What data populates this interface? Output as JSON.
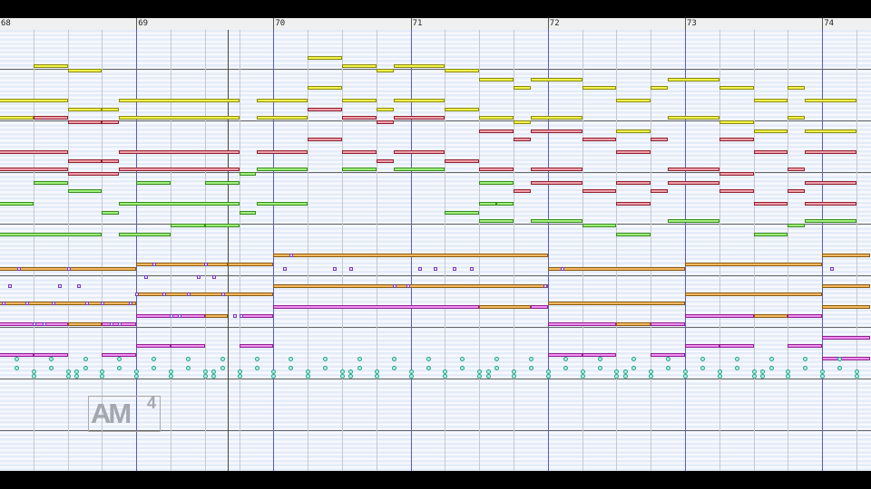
{
  "ruler": {
    "measures": [
      "68",
      "69",
      "70",
      "71",
      "72",
      "73",
      "74"
    ],
    "start_measure": 68,
    "beats_per_measure": 4
  },
  "view": {
    "top_pitch": 108,
    "playhead_beat": 6.67
  },
  "logo": {
    "text": "AM",
    "sup": "4"
  },
  "colors": {
    "yellow": "#f2f24a",
    "red": "#f0a0aa",
    "green": "#9ef07a",
    "orange": "#f4b860",
    "magenta": "#f090f0",
    "measure_line": "#5a5ac8",
    "beat_line": "#c4c8d0"
  },
  "tracks": [
    {
      "color": "yellow",
      "border": "#8a8a10",
      "notes": [
        [
          1,
          2,
          100
        ],
        [
          2,
          3,
          99
        ],
        [
          9,
          10,
          102
        ],
        [
          10,
          11,
          100
        ],
        [
          11,
          11.5,
          99
        ],
        [
          11.5,
          13,
          100
        ],
        [
          13,
          14,
          99
        ],
        [
          14,
          15,
          97
        ],
        [
          15,
          15.5,
          95
        ],
        [
          15.5,
          17,
          97
        ],
        [
          17,
          18,
          95
        ],
        [
          19.5,
          21,
          97
        ],
        [
          19,
          19.5,
          95
        ],
        [
          21,
          22,
          95
        ],
        [
          23,
          23.5,
          95
        ],
        [
          9,
          10,
          95
        ],
        [
          0,
          2,
          92
        ],
        [
          3.5,
          7,
          92
        ],
        [
          7.5,
          9,
          92
        ],
        [
          10,
          11,
          92
        ],
        [
          11.5,
          13,
          92
        ],
        [
          18,
          19,
          92
        ],
        [
          22,
          23,
          92
        ],
        [
          23.5,
          25,
          92
        ],
        [
          2,
          3,
          90
        ],
        [
          3,
          3.5,
          90
        ],
        [
          11,
          11.5,
          90
        ],
        [
          13,
          14,
          90
        ],
        [
          0,
          1,
          88
        ],
        [
          3.5,
          7,
          88
        ],
        [
          7.5,
          9,
          88
        ],
        [
          14,
          15,
          88
        ],
        [
          15.5,
          17,
          88
        ],
        [
          19.5,
          21,
          88
        ],
        [
          23,
          23.5,
          88
        ],
        [
          15,
          15.5,
          87
        ],
        [
          21,
          22,
          87
        ],
        [
          18,
          19,
          85
        ],
        [
          22,
          23,
          85
        ],
        [
          23.5,
          25,
          85
        ]
      ]
    },
    {
      "color": "red",
      "border": "#902030",
      "notes": [
        [
          1,
          2,
          88
        ],
        [
          2,
          3,
          87
        ],
        [
          3,
          3.5,
          87
        ],
        [
          9,
          10,
          90
        ],
        [
          10,
          11,
          88
        ],
        [
          11.5,
          13,
          88
        ],
        [
          11,
          11.5,
          87
        ],
        [
          14,
          15,
          85
        ],
        [
          15,
          15.5,
          83
        ],
        [
          15.5,
          17,
          85
        ],
        [
          17,
          18,
          83
        ],
        [
          19,
          19.5,
          83
        ],
        [
          21,
          22,
          83
        ],
        [
          9,
          10,
          83
        ],
        [
          0,
          2,
          80
        ],
        [
          3.5,
          7,
          80
        ],
        [
          7.5,
          9,
          80
        ],
        [
          10,
          11,
          80
        ],
        [
          11.5,
          13,
          80
        ],
        [
          18,
          19,
          80
        ],
        [
          22,
          23,
          80
        ],
        [
          23.5,
          25,
          80
        ],
        [
          2,
          3,
          78
        ],
        [
          3,
          3.5,
          78
        ],
        [
          11,
          11.5,
          78
        ],
        [
          13,
          14,
          78
        ],
        [
          0,
          2,
          76
        ],
        [
          3.5,
          7,
          76
        ],
        [
          14,
          15,
          76
        ],
        [
          15.5,
          17,
          76
        ],
        [
          19.5,
          21,
          76
        ],
        [
          23,
          23.5,
          76
        ],
        [
          2,
          3.5,
          75
        ],
        [
          21,
          22,
          75
        ],
        [
          15.5,
          17,
          73
        ],
        [
          18,
          19,
          73
        ],
        [
          19.5,
          21,
          73
        ],
        [
          23.5,
          25,
          73
        ],
        [
          15,
          15.5,
          71
        ],
        [
          17,
          18,
          71
        ],
        [
          19,
          19.5,
          71
        ],
        [
          21,
          22,
          71
        ],
        [
          23,
          23.5,
          71
        ],
        [
          22,
          23,
          68
        ],
        [
          23.5,
          25,
          68
        ],
        [
          18,
          19,
          68
        ]
      ]
    },
    {
      "color": "green",
      "border": "#3a8a20",
      "notes": [
        [
          7,
          7.5,
          75
        ],
        [
          7.5,
          9,
          76
        ],
        [
          10,
          11,
          76
        ],
        [
          11.5,
          13,
          76
        ],
        [
          1,
          2,
          73
        ],
        [
          4,
          5,
          73
        ],
        [
          6,
          7,
          73
        ],
        [
          14,
          15,
          73
        ],
        [
          2,
          3,
          71
        ],
        [
          0,
          1,
          68
        ],
        [
          3.5,
          7,
          68
        ],
        [
          7.5,
          9,
          68
        ],
        [
          14,
          14.5,
          68
        ],
        [
          14.5,
          15,
          68
        ],
        [
          3,
          3.5,
          66
        ],
        [
          7,
          7.5,
          66
        ],
        [
          13,
          14,
          66
        ],
        [
          14,
          15,
          64
        ],
        [
          15.5,
          17,
          64
        ],
        [
          19.5,
          21,
          64
        ],
        [
          23.5,
          25,
          64
        ],
        [
          5,
          6,
          63
        ],
        [
          6,
          7,
          63
        ],
        [
          17,
          18,
          63
        ],
        [
          23,
          23.5,
          63
        ],
        [
          0,
          3,
          61
        ],
        [
          3.5,
          5,
          61
        ],
        [
          18,
          19,
          61
        ],
        [
          22,
          23,
          61
        ]
      ]
    },
    {
      "color": "orange",
      "border": "#8a5a10",
      "notes": [
        [
          0,
          4,
          53
        ],
        [
          4,
          6.67,
          54
        ],
        [
          6.67,
          8,
          54
        ],
        [
          8,
          16,
          56
        ],
        [
          16,
          20,
          53
        ],
        [
          20,
          24,
          54
        ],
        [
          24,
          25.4,
          56
        ],
        [
          4,
          8,
          47
        ],
        [
          8,
          16,
          49
        ],
        [
          16,
          20,
          45
        ],
        [
          20,
          24,
          47
        ],
        [
          24,
          25.4,
          49
        ],
        [
          0,
          4,
          45
        ],
        [
          2,
          3,
          40
        ],
        [
          6,
          6.67,
          42
        ],
        [
          14,
          15.5,
          44
        ],
        [
          18,
          19,
          40
        ],
        [
          22,
          23,
          42
        ],
        [
          24,
          25.4,
          44
        ]
      ]
    },
    {
      "color": "magenta",
      "border": "#902090",
      "notes": [
        [
          0,
          2,
          40
        ],
        [
          3,
          4,
          40
        ],
        [
          4,
          6,
          42
        ],
        [
          7,
          8,
          42
        ],
        [
          8,
          14,
          44
        ],
        [
          15.5,
          16,
          44
        ],
        [
          16,
          18,
          40
        ],
        [
          19,
          20,
          40
        ],
        [
          20,
          22,
          42
        ],
        [
          23,
          24,
          42
        ],
        [
          24,
          25.4,
          37
        ],
        [
          4,
          5,
          35
        ],
        [
          5,
          6,
          35
        ],
        [
          7,
          8,
          35
        ],
        [
          0,
          1,
          33
        ],
        [
          1,
          2,
          33
        ],
        [
          3,
          4,
          33
        ],
        [
          16,
          17,
          33
        ],
        [
          17,
          18,
          33
        ],
        [
          19,
          20,
          33
        ],
        [
          20,
          21,
          35
        ],
        [
          21,
          22,
          35
        ],
        [
          23,
          24,
          35
        ],
        [
          24,
          25.4,
          32
        ]
      ]
    }
  ],
  "markers": [
    [
      8.5,
      56
    ],
    [
      4.5,
      54
    ],
    [
      6,
      54
    ],
    [
      0.55,
      53
    ],
    [
      2,
      53
    ],
    [
      8.3,
      53
    ],
    [
      9.75,
      53
    ],
    [
      10.25,
      53
    ],
    [
      12.25,
      53
    ],
    [
      12.7,
      53
    ],
    [
      13.25,
      53
    ],
    [
      13.75,
      53
    ],
    [
      24.25,
      53
    ],
    [
      16.4,
      53
    ],
    [
      0.3,
      49
    ],
    [
      1.75,
      49
    ],
    [
      2.3,
      49
    ],
    [
      11.5,
      49
    ],
    [
      11.9,
      49
    ],
    [
      15.9,
      49
    ],
    [
      4.25,
      51
    ],
    [
      5.8,
      51
    ],
    [
      6.25,
      51
    ],
    [
      4,
      47
    ],
    [
      4.8,
      47
    ],
    [
      5.5,
      47
    ],
    [
      6.5,
      47
    ],
    [
      0.1,
      45
    ],
    [
      0.8,
      45
    ],
    [
      1.55,
      45
    ],
    [
      2.55,
      45
    ],
    [
      3,
      45
    ],
    [
      3.8,
      45
    ],
    [
      5,
      42
    ],
    [
      5.25,
      42
    ],
    [
      6.85,
      42
    ],
    [
      7.05,
      42
    ],
    [
      1,
      40
    ],
    [
      1.3,
      40
    ],
    [
      3.25,
      40
    ],
    [
      3.5,
      40
    ]
  ],
  "drums": {
    "single_pitches": [
      32,
      30
    ],
    "double_pitches": [
      29,
      28
    ],
    "double_beats": [
      1,
      2,
      2.25,
      3,
      4,
      5,
      6,
      6.25,
      7,
      8,
      9,
      10,
      10.25,
      11,
      12,
      13,
      14,
      14.25,
      15,
      16,
      17,
      18,
      18.25,
      19,
      20,
      21,
      22,
      22.25,
      23,
      24,
      25
    ]
  }
}
